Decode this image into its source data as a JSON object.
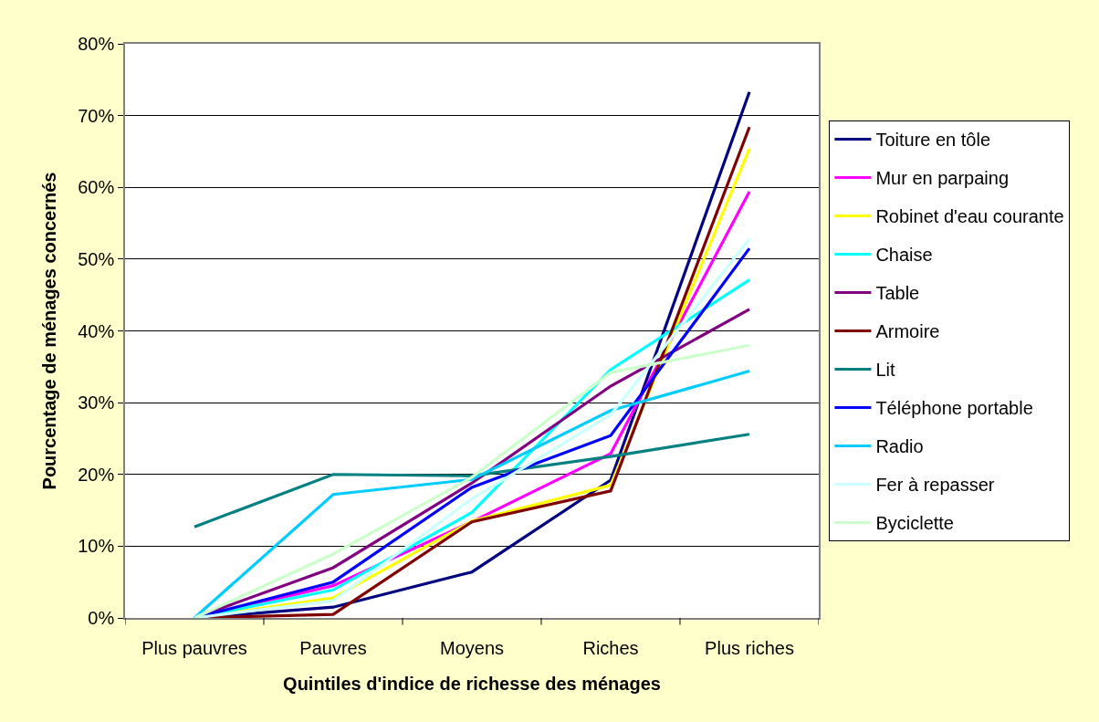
{
  "chart_data": {
    "type": "line",
    "xlabel": "Quintiles d'indice de richesse des ménages",
    "ylabel": "Pourcentage de ménages concernés",
    "categories": [
      "Plus pauvres",
      "Pauvres",
      "Moyens",
      "Riches",
      "Plus riches"
    ],
    "series": [
      {
        "name": "Toiture en tôle",
        "color": "#000080",
        "values": [
          0,
          1.5,
          6.4,
          19.2,
          73.3
        ]
      },
      {
        "name": "Mur en parpaing",
        "color": "#ff00ff",
        "values": [
          0,
          4.5,
          13.4,
          22.9,
          59.4
        ]
      },
      {
        "name": "Robinet d'eau courante",
        "color": "#ffff00",
        "values": [
          0,
          2.8,
          13.5,
          18.5,
          65.4
        ]
      },
      {
        "name": "Chaise",
        "color": "#00ffff",
        "values": [
          0,
          3.9,
          14.7,
          34.6,
          47.1
        ]
      },
      {
        "name": "Table",
        "color": "#800080",
        "values": [
          0,
          7.0,
          18.8,
          32.3,
          43.0
        ]
      },
      {
        "name": "Armoire",
        "color": "#800000",
        "values": [
          0,
          0.5,
          13.4,
          17.7,
          68.4
        ]
      },
      {
        "name": "Lit",
        "color": "#008080",
        "values": [
          12.7,
          20.0,
          19.8,
          22.5,
          25.6
        ]
      },
      {
        "name": "Téléphone portable",
        "color": "#0000ff",
        "values": [
          0,
          5.0,
          18.2,
          25.4,
          51.5
        ]
      },
      {
        "name": "Radio",
        "color": "#00ccff",
        "values": [
          0,
          17.2,
          19.3,
          28.9,
          34.4
        ]
      },
      {
        "name": "Fer à repasser",
        "color": "#ccffff",
        "values": [
          0,
          2.4,
          16.6,
          28.3,
          52.8
        ]
      },
      {
        "name": "Byciclette",
        "color": "#ccffcc",
        "values": [
          0,
          8.9,
          19.6,
          34.2,
          38.0
        ]
      }
    ],
    "ylim": [
      0,
      80
    ],
    "yticks": [
      {
        "value": 0,
        "label": "0%"
      },
      {
        "value": 10,
        "label": "10%"
      },
      {
        "value": 20,
        "label": "20%"
      },
      {
        "value": 30,
        "label": "30%"
      },
      {
        "value": 40,
        "label": "40%"
      },
      {
        "value": 50,
        "label": "50%"
      },
      {
        "value": 60,
        "label": "60%"
      },
      {
        "value": 70,
        "label": "70%"
      },
      {
        "value": 80,
        "label": "80%"
      }
    ],
    "grid": "y",
    "legend": "right",
    "marker": "none",
    "line_style": "solid"
  }
}
